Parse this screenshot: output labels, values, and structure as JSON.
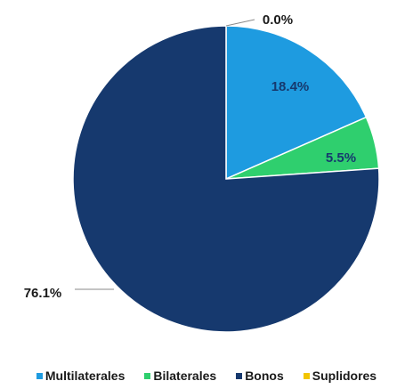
{
  "chart_data": {
    "type": "pie",
    "title": "",
    "categories": [
      "Multilaterales",
      "Bilaterales",
      "Bonos",
      "Suplidores"
    ],
    "values": [
      18.4,
      5.5,
      76.1,
      0.0
    ],
    "labels": [
      "18.4%",
      "5.5%",
      "76.1%",
      "0.0%"
    ],
    "colors": [
      "#1e9be0",
      "#2fcf6e",
      "#16396e",
      "#f2c500"
    ],
    "legend_position": "bottom"
  }
}
